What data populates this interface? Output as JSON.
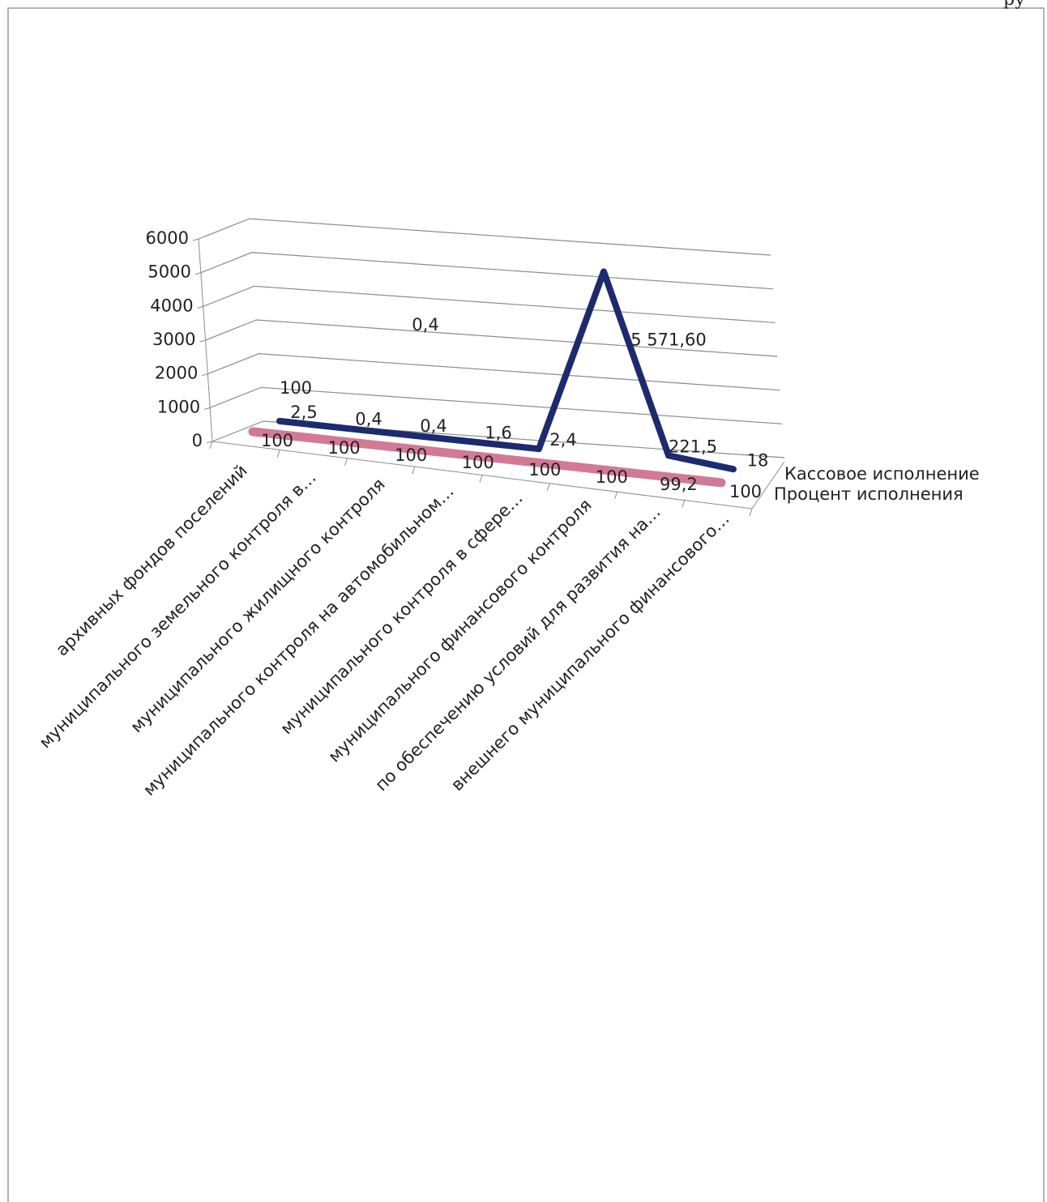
{
  "header_fragment": "ру",
  "chart_data": {
    "type": "line3d",
    "categories": [
      "архивных фондов поселений",
      "муниципального земельного контроля в…",
      "муниципального жилищного контроля",
      "муниципального контроля на автомобильном…",
      "муниципального контроля в сфере…",
      "муниципального финансового контроля",
      "по обеспечению условий для развития на…",
      "внешнего муниципального финансового…"
    ],
    "series": [
      {
        "name": "Кассовое исполнение",
        "color": "#1c2b6e",
        "values": [
          2.5,
          0.4,
          0.4,
          1.6,
          2.4,
          5571.6,
          221.5,
          18
        ],
        "value_labels": [
          "2,5",
          "0,4",
          "0,4",
          "1,6",
          "2,4",
          "5 571,60",
          "221,5",
          "18"
        ]
      },
      {
        "name": "Процент исполнения",
        "color": "#d27a95",
        "values": [
          100,
          100,
          100,
          100,
          100,
          100,
          99.2,
          100
        ],
        "value_labels": [
          "100",
          "100",
          "100",
          "100",
          "100",
          "100",
          "99,2",
          "100"
        ]
      }
    ],
    "annotations": [
      "100",
      "0,4"
    ],
    "ylim": [
      0,
      6000
    ],
    "yticks": [
      0,
      1000,
      2000,
      3000,
      4000,
      5000,
      6000
    ],
    "grid": true,
    "legend": "right"
  }
}
